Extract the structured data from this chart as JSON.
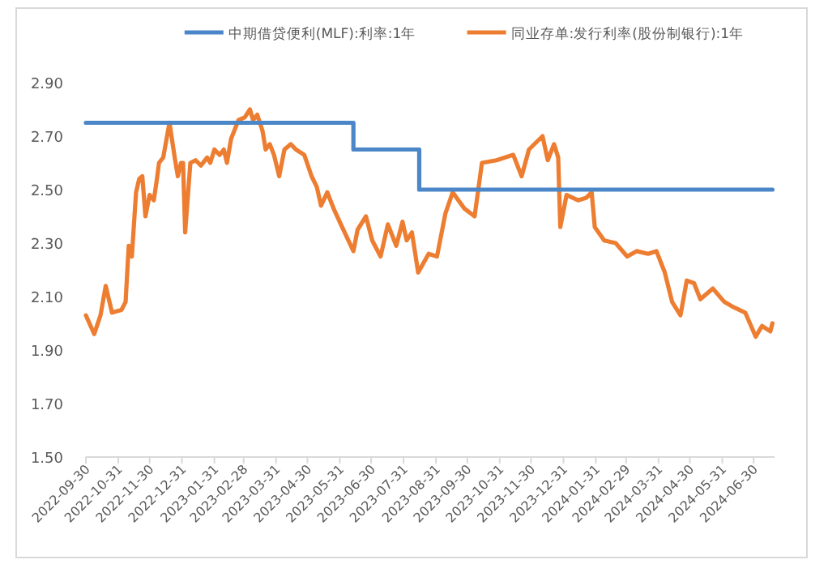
{
  "chart_data": {
    "type": "line",
    "ylim": [
      1.5,
      2.9
    ],
    "yticks": [
      {
        "value": 1.5,
        "label": "1.50"
      },
      {
        "value": 1.7,
        "label": "1.70"
      },
      {
        "value": 1.9,
        "label": "1.90"
      },
      {
        "value": 2.1,
        "label": "2.10"
      },
      {
        "value": 2.3,
        "label": "2.30"
      },
      {
        "value": 2.5,
        "label": "2.50"
      },
      {
        "value": 2.7,
        "label": "2.70"
      },
      {
        "value": 2.9,
        "label": "2.90"
      }
    ],
    "xlim": [
      "2022-09-30",
      "2024-07-20"
    ],
    "xticks": [
      "2022-09-30",
      "2022-10-31",
      "2022-11-30",
      "2022-12-31",
      "2023-01-31",
      "2023-02-28",
      "2023-03-31",
      "2023-04-30",
      "2023-05-31",
      "2023-06-30",
      "2023-07-31",
      "2023-08-31",
      "2023-09-30",
      "2023-10-31",
      "2023-11-30",
      "2023-12-31",
      "2024-01-31",
      "2024-02-29",
      "2024-03-31",
      "2024-04-30",
      "2024-05-31",
      "2024-06-30"
    ],
    "grid": false,
    "legend": "top",
    "series": [
      {
        "name": "中期借贷便利(MLF):利率:1年",
        "type": "step",
        "color": "#4a86c8",
        "x": [
          "2022-09-30",
          "2023-06-13",
          "2023-08-15",
          "2024-07-18"
        ],
        "values": [
          2.75,
          2.65,
          2.5,
          2.5
        ]
      },
      {
        "name": "同业存单:发行利率(股份制银行):1年",
        "color": "#ed7d31",
        "x": [
          "2022-09-30",
          "2022-10-08",
          "2022-10-14",
          "2022-10-19",
          "2022-10-25",
          "2022-11-03",
          "2022-11-07",
          "2022-11-10",
          "2022-11-13",
          "2022-11-17",
          "2022-11-20",
          "2022-11-23",
          "2022-11-26",
          "2022-11-30",
          "2022-12-04",
          "2022-12-07",
          "2022-12-09",
          "2022-12-13",
          "2022-12-19",
          "2022-12-24",
          "2022-12-27",
          "2022-12-30",
          "2023-01-01",
          "2023-01-03",
          "2023-01-08",
          "2023-01-13",
          "2023-01-18",
          "2023-01-24",
          "2023-01-27",
          "2023-01-31",
          "2023-02-05",
          "2023-02-09",
          "2023-02-12",
          "2023-02-16",
          "2023-02-23",
          "2023-03-01",
          "2023-03-06",
          "2023-03-09",
          "2023-03-13",
          "2023-03-18",
          "2023-03-21",
          "2023-03-25",
          "2023-03-29",
          "2023-04-03",
          "2023-04-08",
          "2023-04-14",
          "2023-04-19",
          "2023-04-27",
          "2023-05-04",
          "2023-05-09",
          "2023-05-13",
          "2023-05-19",
          "2023-05-25",
          "2023-06-01",
          "2023-06-13",
          "2023-06-17",
          "2023-06-25",
          "2023-07-01",
          "2023-07-09",
          "2023-07-16",
          "2023-07-24",
          "2023-07-30",
          "2023-08-03",
          "2023-08-08",
          "2023-08-14",
          "2023-08-24",
          "2023-09-01",
          "2023-09-09",
          "2023-09-16",
          "2023-09-27",
          "2023-10-07",
          "2023-10-14",
          "2023-10-28",
          "2023-11-13",
          "2023-11-21",
          "2023-11-28",
          "2023-12-11",
          "2023-12-16",
          "2023-12-22",
          "2023-12-26",
          "2023-12-28",
          "2024-01-03",
          "2024-01-14",
          "2024-01-22",
          "2024-01-27",
          "2024-01-30",
          "2024-02-08",
          "2024-02-19",
          "2024-03-01",
          "2024-03-10",
          "2024-03-21",
          "2024-03-29",
          "2024-04-06",
          "2024-04-13",
          "2024-04-21",
          "2024-04-27",
          "2024-05-04",
          "2024-05-10",
          "2024-05-22",
          "2024-06-02",
          "2024-06-11",
          "2024-06-22",
          "2024-07-02",
          "2024-07-08",
          "2024-07-16",
          "2024-07-18"
        ],
        "values": [
          2.03,
          1.96,
          2.03,
          2.14,
          2.04,
          2.05,
          2.08,
          2.29,
          2.25,
          2.49,
          2.54,
          2.55,
          2.4,
          2.48,
          2.46,
          2.54,
          2.6,
          2.62,
          2.75,
          2.62,
          2.55,
          2.6,
          2.6,
          2.34,
          2.6,
          2.61,
          2.59,
          2.62,
          2.6,
          2.65,
          2.63,
          2.65,
          2.6,
          2.69,
          2.76,
          2.77,
          2.8,
          2.76,
          2.78,
          2.72,
          2.65,
          2.67,
          2.63,
          2.55,
          2.65,
          2.67,
          2.65,
          2.63,
          2.55,
          2.51,
          2.44,
          2.49,
          2.43,
          2.37,
          2.27,
          2.35,
          2.4,
          2.31,
          2.25,
          2.37,
          2.29,
          2.38,
          2.31,
          2.34,
          2.19,
          2.26,
          2.25,
          2.41,
          2.49,
          2.43,
          2.4,
          2.6,
          2.61,
          2.63,
          2.55,
          2.65,
          2.7,
          2.61,
          2.67,
          2.62,
          2.36,
          2.48,
          2.46,
          2.47,
          2.49,
          2.36,
          2.31,
          2.3,
          2.25,
          2.27,
          2.26,
          2.27,
          2.19,
          2.08,
          2.03,
          2.16,
          2.15,
          2.09,
          2.13,
          2.08,
          2.06,
          2.04,
          1.95,
          1.99,
          1.97,
          2.0
        ]
      }
    ]
  }
}
